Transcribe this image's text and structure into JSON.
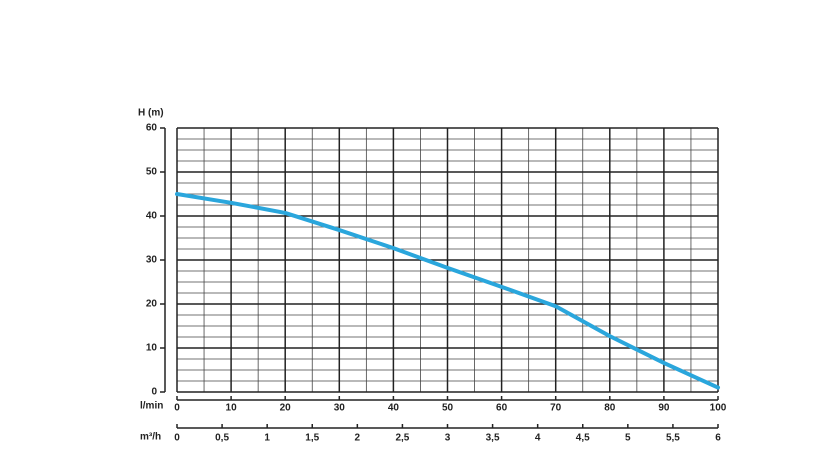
{
  "chart_data": {
    "type": "line",
    "ylabel": "H (m)",
    "xlabel": "l/min",
    "x2label": "m³/h",
    "x": [
      0,
      10,
      20,
      30,
      40,
      50,
      60,
      70,
      80,
      90,
      100
    ],
    "series": [
      {
        "color": "#2aa6dc",
        "values": [
          45,
          43,
          40.7,
          36.8,
          32.7,
          28.2,
          23.9,
          19.5,
          12.7,
          6.6,
          1
        ]
      }
    ],
    "xlim": [
      0,
      100
    ],
    "xticks": [
      0,
      10,
      20,
      30,
      40,
      50,
      60,
      70,
      80,
      90,
      100
    ],
    "x2lim": [
      0,
      6
    ],
    "x2ticks": [
      0,
      {
        "value": 0.5,
        "label": "0,5"
      },
      1,
      {
        "value": 1.5,
        "label": "1,5"
      },
      2,
      {
        "value": 2.5,
        "label": "2,5"
      },
      3,
      {
        "value": 3.5,
        "label": "3,5"
      },
      4,
      {
        "value": 4.5,
        "label": "4,5"
      },
      5,
      {
        "value": 5.5,
        "label": "5,5"
      },
      6
    ],
    "ylim": [
      0,
      60
    ],
    "yticks": [
      0,
      10,
      20,
      30,
      40,
      50,
      60
    ],
    "grid": true
  }
}
